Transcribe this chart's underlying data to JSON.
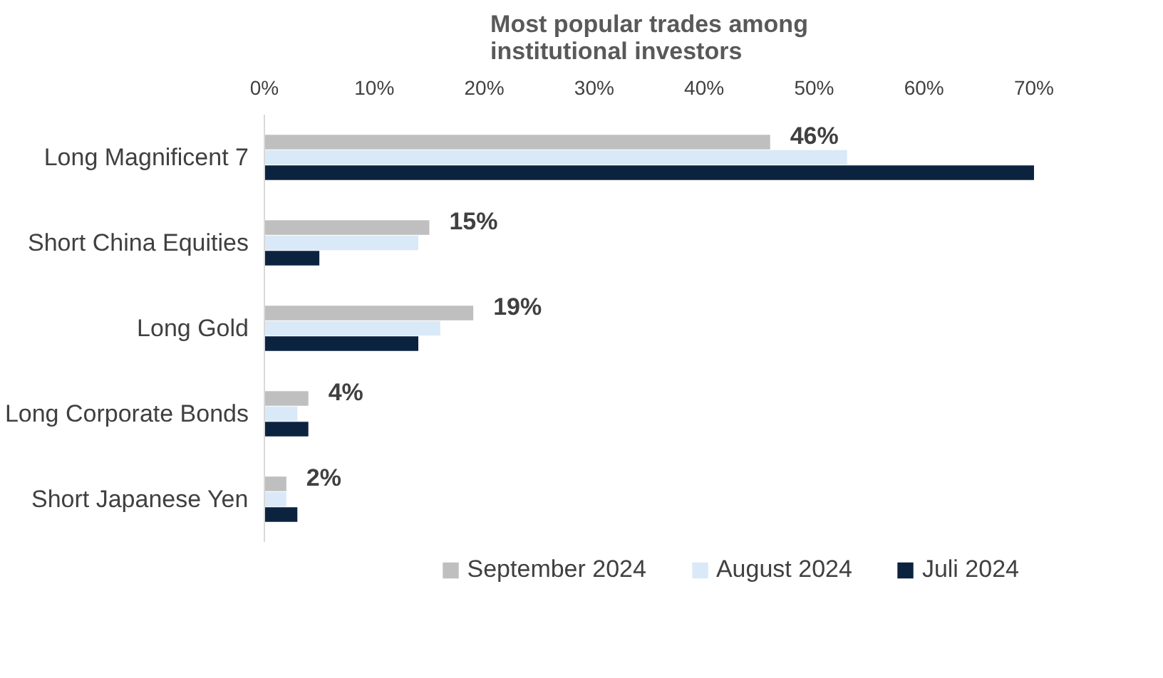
{
  "chart_data": {
    "type": "bar",
    "orientation": "horizontal",
    "title": "Most popular trades among\ninstitutional investors",
    "categories": [
      "Long Magnificent 7",
      "Short China Equities",
      "Long Gold",
      "Long Corporate Bonds",
      "Short Japanese Yen"
    ],
    "series": [
      {
        "name": "September 2024",
        "color": "#bfbfbf",
        "values": [
          46,
          15,
          19,
          4,
          2
        ],
        "value_labels": [
          "46%",
          "15%",
          "19%",
          "4%",
          "2%"
        ]
      },
      {
        "name": "August 2024",
        "color": "#dae9f7",
        "values": [
          53,
          14,
          16,
          3,
          2
        ]
      },
      {
        "name": "Juli 2024",
        "color": "#0c2340",
        "values": [
          70,
          5,
          14,
          4,
          3
        ]
      }
    ],
    "xlim": [
      0,
      70
    ],
    "xticks": [
      {
        "value": 0,
        "label": "0%"
      },
      {
        "value": 10,
        "label": "10%"
      },
      {
        "value": 20,
        "label": "20%"
      },
      {
        "value": 30,
        "label": "30%"
      },
      {
        "value": 40,
        "label": "40%"
      },
      {
        "value": 50,
        "label": "50%"
      },
      {
        "value": 60,
        "label": "60%"
      },
      {
        "value": 70,
        "label": "70%"
      }
    ],
    "grid": false,
    "legend": "bottom"
  }
}
